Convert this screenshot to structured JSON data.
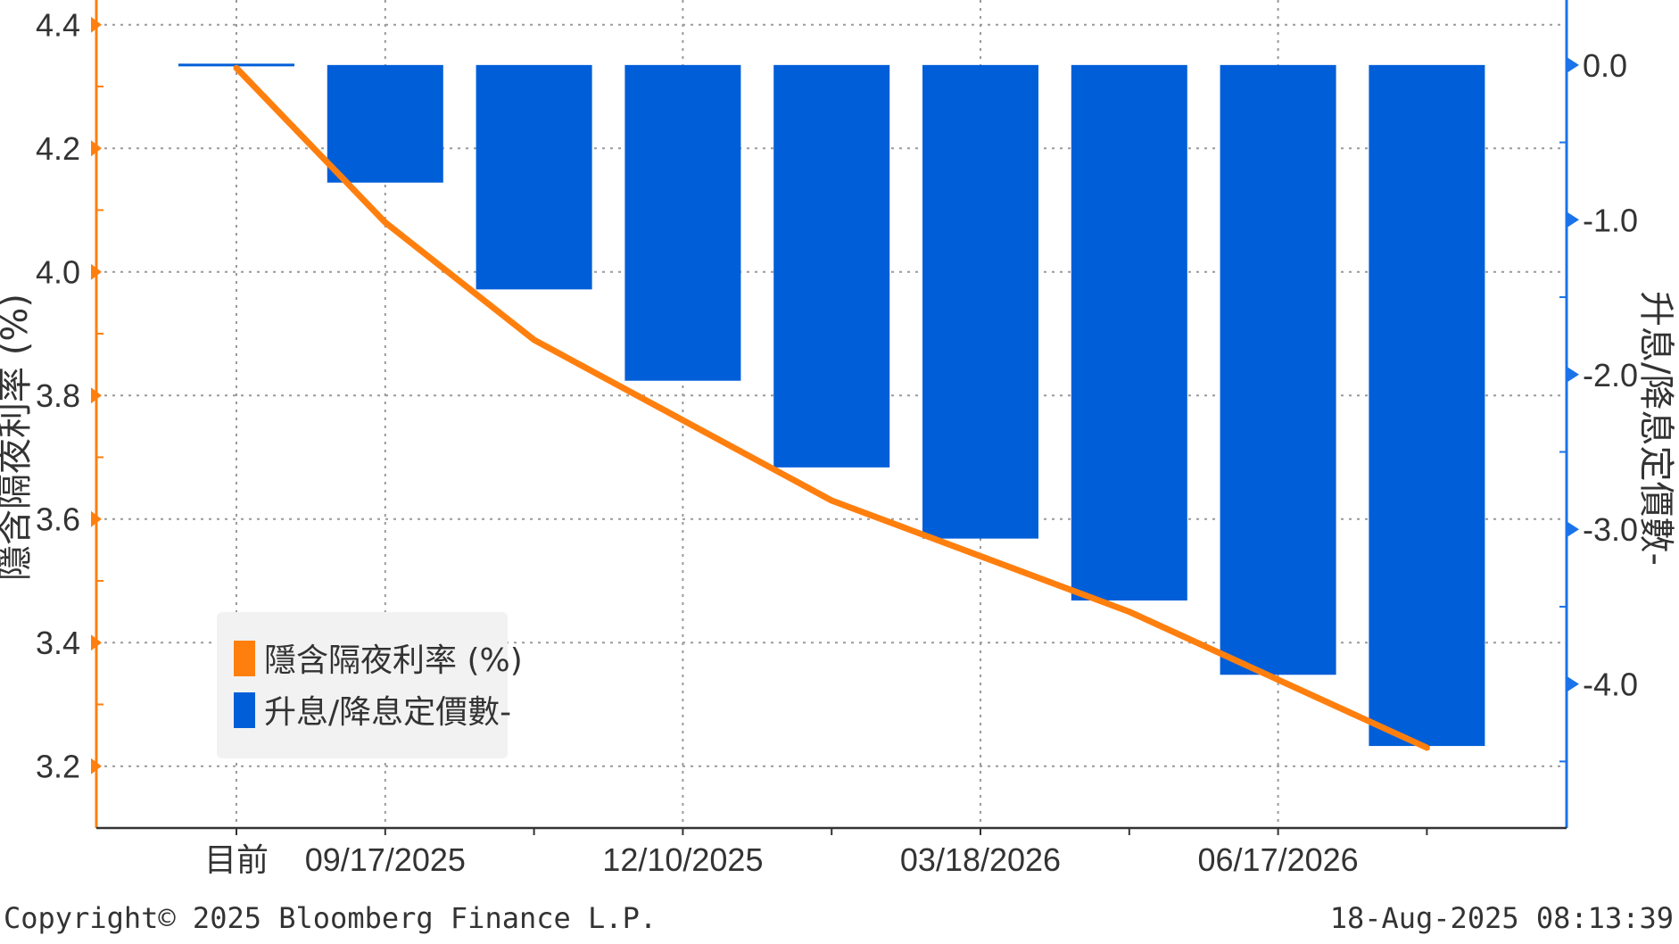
{
  "chart_data": {
    "type": "bar",
    "title": "",
    "categories": [
      "目前",
      "09/17/2025",
      "",
      "12/10/2025",
      "",
      "03/18/2026",
      "",
      "06/17/2026",
      ""
    ],
    "series": [
      {
        "name": "隱含隔夜利率 (%)",
        "type": "line",
        "axis": "left",
        "color": "#ff7f0e",
        "values": [
          4.33,
          4.08,
          3.89,
          3.76,
          3.63,
          3.54,
          3.45,
          3.34,
          3.23
        ]
      },
      {
        "name": "升息/降息定價數-",
        "type": "bar",
        "axis": "right",
        "color": "#005ed8",
        "values": [
          0,
          -0.76,
          -1.45,
          -2.04,
          -2.6,
          -3.06,
          -3.46,
          -3.94,
          -4.4
        ]
      }
    ],
    "left_axis": {
      "label": "隱含隔夜利率 (%)",
      "ylim": [
        3.1,
        4.44
      ],
      "ticks": [
        "4.4",
        "4.2",
        "4.0",
        "3.8",
        "3.6",
        "3.4",
        "3.2"
      ],
      "tick_values": [
        4.4,
        4.2,
        4.0,
        3.8,
        3.6,
        3.4,
        3.2
      ],
      "color": "#ff7f0e"
    },
    "right_axis": {
      "label": "升息/降息定價數-",
      "ylim": [
        -4.93,
        0.42
      ],
      "ticks": [
        "0.0",
        "-1.0",
        "-2.0",
        "-3.0",
        "-4.0"
      ],
      "tick_values": [
        0,
        -1,
        -2,
        -3,
        -4
      ],
      "color": "#1a73e8"
    },
    "grid": true,
    "legend": "bottom-left"
  },
  "footer": {
    "copyright": "Copyright© 2025 Bloomberg Finance L.P.",
    "timestamp": "18-Aug-2025 08:13:39"
  }
}
